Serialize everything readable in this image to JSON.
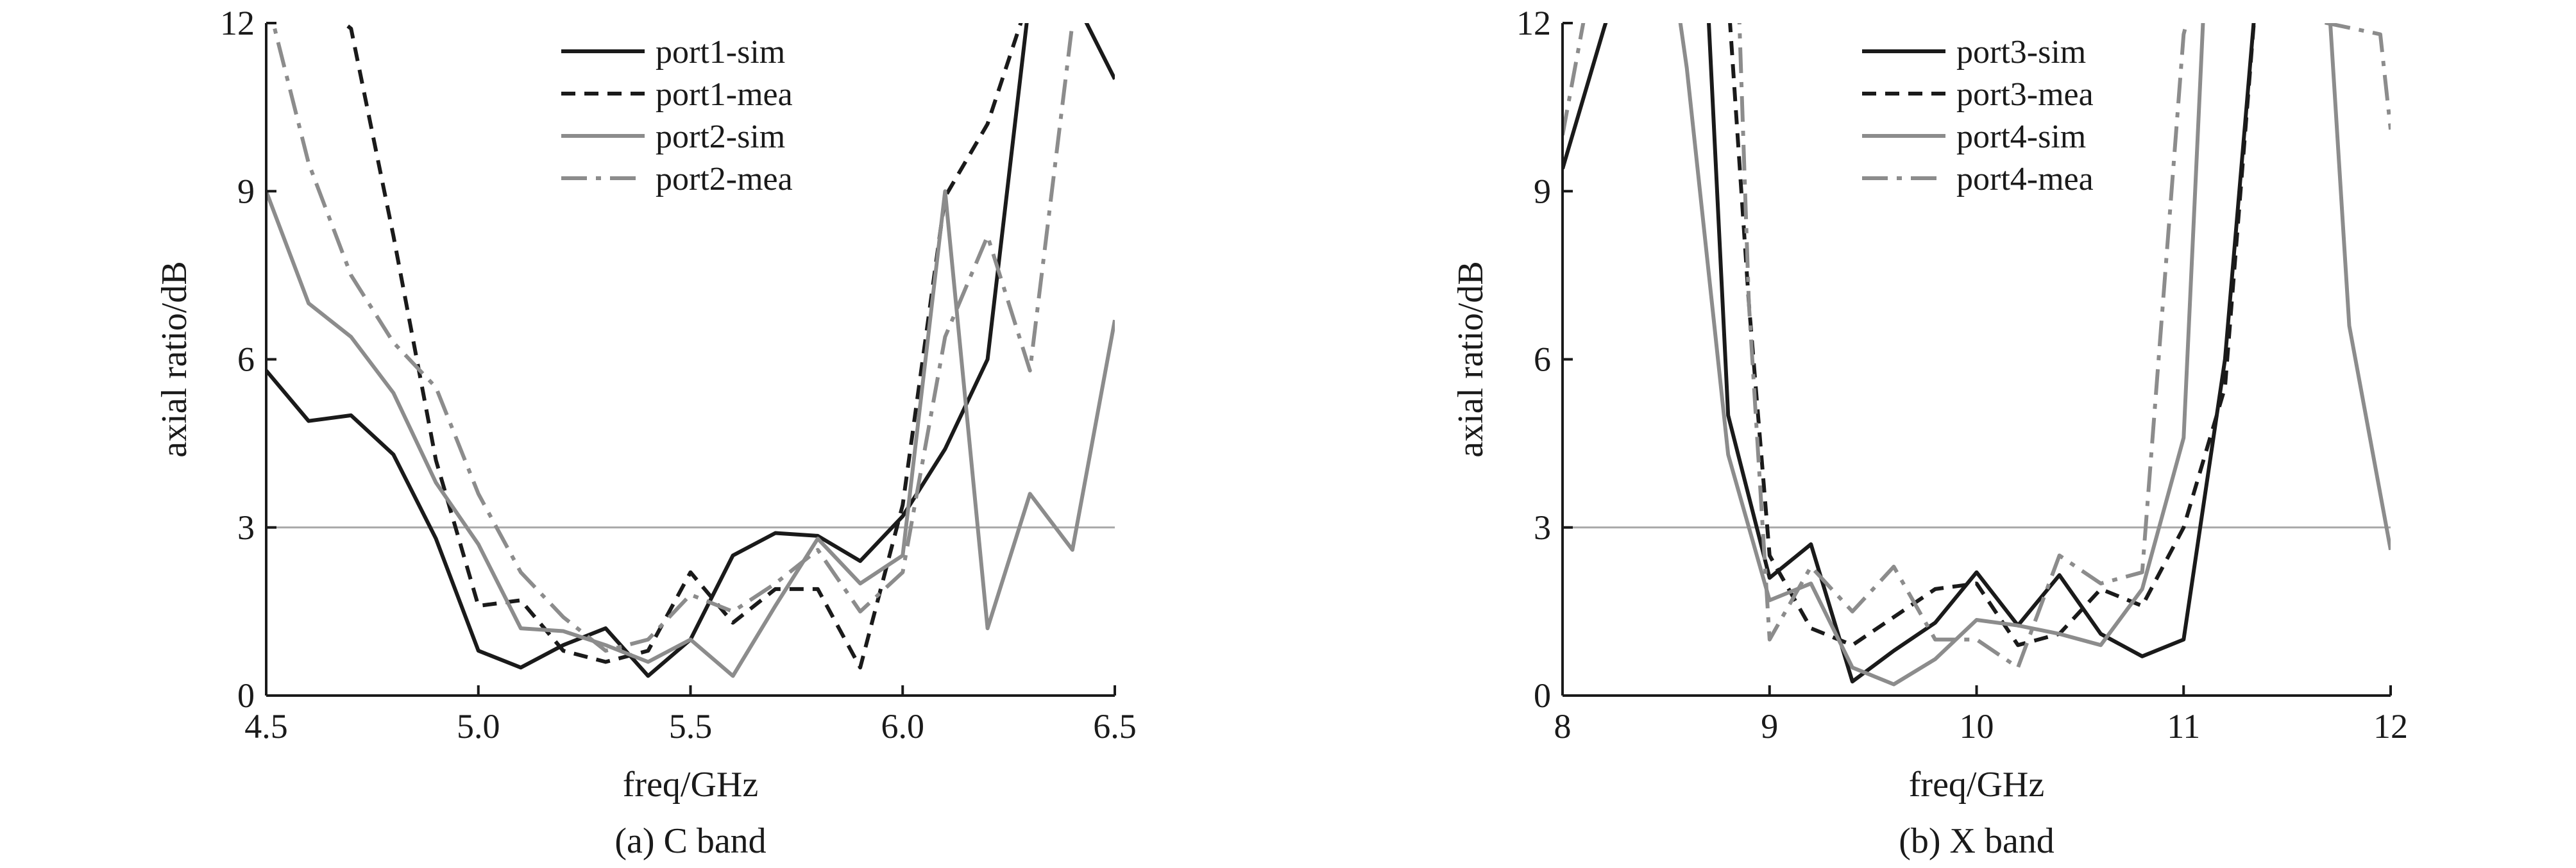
{
  "chart_data": [
    {
      "type": "line",
      "caption": "(a) C band",
      "xlabel": "freq/GHz",
      "ylabel": "axial ratio/dB",
      "xlim": [
        4.5,
        6.5
      ],
      "ylim": [
        0,
        12
      ],
      "xticks": [
        "4.5",
        "5.0",
        "5.5",
        "6.0",
        "6.5"
      ],
      "yticks": [
        "0",
        "3",
        "6",
        "9",
        "12"
      ],
      "reference_line": 3,
      "legend_position": "top-center",
      "series": [
        {
          "name": "port1-sim",
          "style": "solid",
          "color": "#1a1a1a",
          "x": [
            4.5,
            4.6,
            4.7,
            4.8,
            4.9,
            5.0,
            5.1,
            5.2,
            5.3,
            5.4,
            5.5,
            5.6,
            5.7,
            5.8,
            5.9,
            6.0,
            6.1,
            6.2,
            6.3,
            6.4,
            6.5
          ],
          "y": [
            5.8,
            4.9,
            5.0,
            4.3,
            2.8,
            0.8,
            0.5,
            0.9,
            1.2,
            0.35,
            1.0,
            2.5,
            2.9,
            2.85,
            2.4,
            3.2,
            4.4,
            6.0,
            12.5,
            12.5,
            11.0
          ]
        },
        {
          "name": "port1-mea",
          "style": "dashed",
          "color": "#1a1a1a",
          "x": [
            4.5,
            4.6,
            4.7,
            4.8,
            4.9,
            5.0,
            5.1,
            5.2,
            5.3,
            5.4,
            5.5,
            5.6,
            5.7,
            5.8,
            5.9,
            6.0,
            6.1,
            6.2,
            6.3
          ],
          "y": [
            12.5,
            12.5,
            11.9,
            8.2,
            4.2,
            1.6,
            1.7,
            0.8,
            0.6,
            0.8,
            2.2,
            1.3,
            1.9,
            1.9,
            0.5,
            3.4,
            8.9,
            10.2,
            12.5
          ]
        },
        {
          "name": "port2-sim",
          "style": "solid",
          "color": "#8c8c8c",
          "x": [
            4.5,
            4.6,
            4.7,
            4.8,
            4.9,
            5.0,
            5.1,
            5.2,
            5.3,
            5.4,
            5.5,
            5.6,
            5.7,
            5.8,
            5.9,
            6.0,
            6.1,
            6.2,
            6.3,
            6.4,
            6.5
          ],
          "y": [
            9.0,
            7.0,
            6.4,
            5.4,
            3.8,
            2.7,
            1.2,
            1.15,
            0.9,
            0.6,
            1.0,
            0.35,
            1.6,
            2.8,
            2.0,
            2.5,
            9.0,
            1.2,
            3.6,
            2.6,
            6.7
          ]
        },
        {
          "name": "port2-mea",
          "style": "dashdot",
          "color": "#8c8c8c",
          "x": [
            4.5,
            4.6,
            4.7,
            4.8,
            4.9,
            5.0,
            5.1,
            5.2,
            5.3,
            5.4,
            5.5,
            5.6,
            5.7,
            5.8,
            5.9,
            6.0,
            6.1,
            6.2,
            6.3,
            6.4
          ],
          "y": [
            12.5,
            9.5,
            7.5,
            6.3,
            5.5,
            3.6,
            2.2,
            1.4,
            0.8,
            1.0,
            1.8,
            1.5,
            2.0,
            2.6,
            1.5,
            2.2,
            6.4,
            8.2,
            5.8,
            12.0
          ]
        }
      ]
    },
    {
      "type": "line",
      "caption": "(b) X band",
      "xlabel": "freq/GHz",
      "ylabel": "axial ratio/dB",
      "xlim": [
        8,
        12
      ],
      "ylim": [
        0,
        12
      ],
      "xticks": [
        "8",
        "9",
        "10",
        "11",
        "12"
      ],
      "yticks": [
        "0",
        "3",
        "6",
        "9",
        "12"
      ],
      "reference_line": 3,
      "legend_position": "top-center",
      "series": [
        {
          "name": "port3-sim",
          "style": "solid",
          "color": "#1a1a1a",
          "x": [
            8.0,
            8.2,
            8.25,
            8.7,
            8.8,
            9.0,
            9.2,
            9.4,
            9.6,
            9.8,
            10.0,
            10.2,
            10.4,
            10.6,
            10.8,
            11.0,
            11.2,
            11.35
          ],
          "y": [
            9.4,
            11.9,
            12.5,
            12.5,
            5.0,
            2.1,
            2.7,
            0.25,
            0.8,
            1.3,
            2.2,
            1.25,
            2.15,
            1.1,
            0.7,
            1.0,
            6.0,
            12.5
          ]
        },
        {
          "name": "port3-mea",
          "style": "dashed",
          "color": "#1a1a1a",
          "x": [
            8.8,
            8.9,
            9.0,
            9.2,
            9.4,
            9.6,
            9.8,
            10.0,
            10.2,
            10.4,
            10.6,
            10.8,
            11.0,
            11.2,
            11.35
          ],
          "y": [
            12.5,
            7.0,
            2.5,
            1.2,
            0.9,
            1.4,
            1.9,
            2.0,
            0.9,
            1.1,
            1.9,
            1.6,
            3.0,
            5.5,
            12.5
          ]
        },
        {
          "name": "port4-sim",
          "style": "solid",
          "color": "#8c8c8c",
          "x": [
            8.55,
            8.6,
            8.8,
            9.0,
            9.2,
            9.4,
            9.6,
            9.8,
            10.0,
            10.2,
            10.4,
            10.6,
            10.8,
            11.0,
            11.1,
            11.7,
            11.8,
            12.0
          ],
          "y": [
            12.5,
            11.2,
            4.3,
            1.7,
            2.0,
            0.5,
            0.2,
            0.65,
            1.35,
            1.25,
            1.1,
            0.9,
            1.9,
            4.6,
            12.5,
            12.5,
            6.6,
            2.6
          ]
        },
        {
          "name": "port4-mea",
          "style": "dashdot",
          "color": "#8c8c8c",
          "x": [
            8.0,
            8.1,
            8.15,
            8.85,
            8.9,
            9.0,
            9.2,
            9.4,
            9.6,
            9.8,
            10.0,
            10.2,
            10.4,
            10.6,
            10.8,
            11.0,
            11.05,
            11.95,
            12.0
          ],
          "y": [
            10.0,
            12.0,
            12.5,
            12.5,
            7.0,
            1.0,
            2.3,
            1.5,
            2.3,
            1.0,
            1.0,
            0.5,
            2.5,
            2.0,
            2.2,
            11.8,
            12.5,
            11.8,
            10.1
          ]
        }
      ]
    }
  ]
}
